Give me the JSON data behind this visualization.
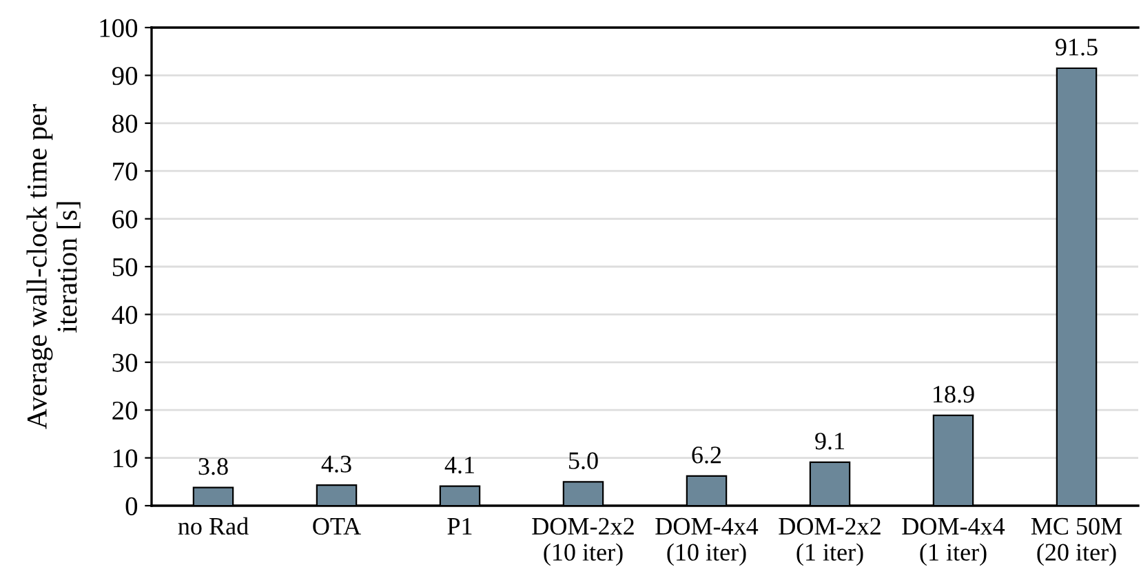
{
  "chart_data": {
    "type": "bar",
    "ylabel": "Average wall-clock time per\niteration [s]",
    "categories": [
      "no Rad",
      "OTA",
      "P1",
      "DOM-2x2\n(10 iter)",
      "DOM-4x4\n(10 iter)",
      "DOM-2x2\n(1 iter)",
      "DOM-4x4\n(1 iter)",
      "MC 50M\n(20 iter)"
    ],
    "values": [
      3.8,
      4.3,
      4.1,
      5.0,
      6.2,
      9.1,
      18.9,
      91.5
    ],
    "color": "#6b8799",
    "ylim": [
      0,
      100
    ],
    "yticks": [
      0,
      10,
      20,
      30,
      40,
      50,
      60,
      70,
      80,
      90,
      100
    ],
    "value_labels": [
      "3.8",
      "4.3",
      "4.1",
      "5.0",
      "6.2",
      "9.1",
      "18.9",
      "91.5"
    ],
    "grid": "y",
    "legend": false
  }
}
